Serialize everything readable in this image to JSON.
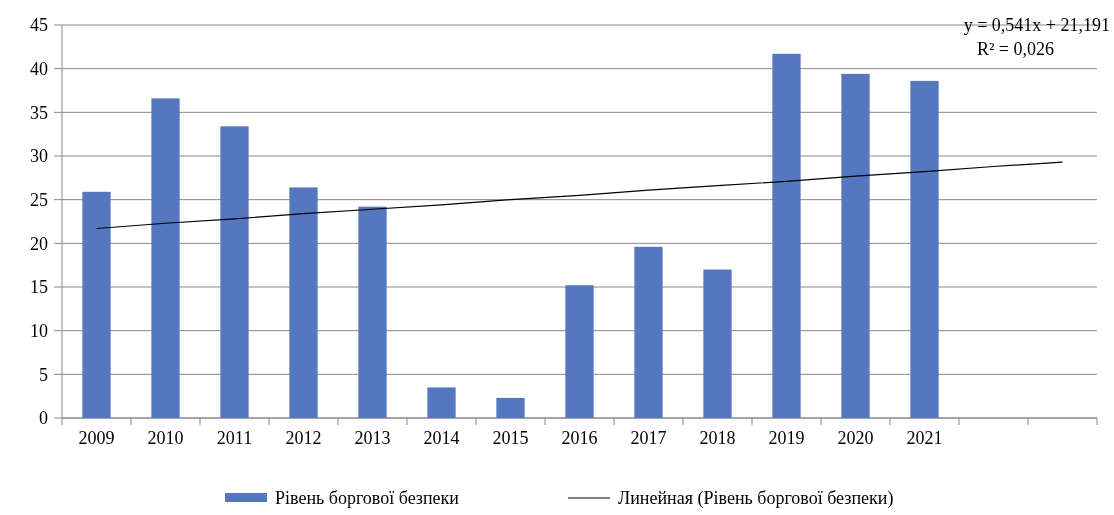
{
  "chart_data": {
    "type": "bar",
    "categories": [
      "2009",
      "2010",
      "2011",
      "2012",
      "2013",
      "2014",
      "2015",
      "2016",
      "2017",
      "2018",
      "2019",
      "2020",
      "2021",
      null,
      null
    ],
    "series": [
      {
        "name": "Рівень боргової безпеки",
        "color": "#5577c0",
        "values": [
          25.9,
          36.6,
          33.4,
          26.4,
          24.2,
          3.5,
          2.3,
          15.2,
          19.6,
          17.0,
          41.7,
          39.4,
          38.6,
          null,
          null
        ]
      },
      {
        "name": "Линейная (Рівень боргової безпеки)",
        "type": "line",
        "color": "#000000",
        "values": [
          21.7,
          22.3,
          22.8,
          23.4,
          23.9,
          24.4,
          25.0,
          25.5,
          26.1,
          26.6,
          27.1,
          27.7,
          28.2,
          28.8,
          29.3
        ]
      }
    ],
    "ylim": [
      0,
      45
    ],
    "yticks": [
      0,
      5,
      10,
      15,
      20,
      25,
      30,
      35,
      40,
      45
    ],
    "grid": "y",
    "legend": "bottom",
    "marker": "none",
    "line_style": "solid",
    "annotations": [
      "y = 0,541x + 21,191",
      "R² = 0,026"
    ]
  }
}
